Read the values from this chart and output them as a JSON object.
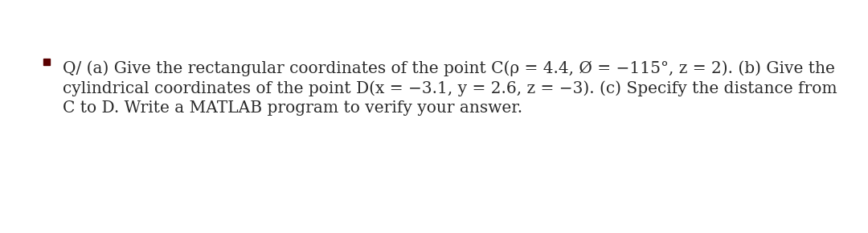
{
  "background_color": "#ffffff",
  "bullet_color": "#5a0000",
  "text_color": "#2a2a2a",
  "line1": "Q/ (a) Give the rectangular coordinates of the point C(ρ = 4.4, Ø = −115°, z = 2). (b) Give the",
  "line2": "cylindrical coordinates of the point D(x = −3.1, y = 2.6, z = −3). (c) Specify the distance from",
  "line3": "C to D. Write a MATLAB program to verify your answer.",
  "fontsize": 14.5,
  "font_family": "DejaVu Serif",
  "fig_width": 10.8,
  "fig_height": 2.9,
  "dpi": 100
}
